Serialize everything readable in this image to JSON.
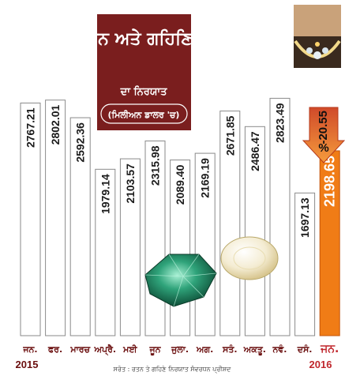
{
  "chart_data": {
    "type": "bar",
    "title": "ਰਤਨ ਅਤੇ ਗਹਿਣਿਆਂ",
    "subtitle": "ਦਾ ਨਿਰਯਾਤ",
    "unit": "(ਮਿਲੀਅਨ ਡਾਲਰ 'ਚ)",
    "categories": [
      "ਜਨ.",
      "ਫਰ.",
      "ਮਾਰਚ",
      "ਅਪ੍ਰੈ.",
      "ਮਈ",
      "ਜੂਨ",
      "ਜੁਲਾ.",
      "ਅਗ.",
      "ਸਤੰ.",
      "ਅਕਤੂ.",
      "ਨਵੰ.",
      "ਦਸੰ.",
      "ਜਨ."
    ],
    "values": [
      2767.21,
      2802.01,
      2592.36,
      1979.14,
      2103.57,
      2315.98,
      2089.4,
      2169.19,
      2671.85,
      2486.47,
      2823.49,
      1697.13,
      2198.65
    ],
    "value_labels": [
      "2767.21",
      "2802.01",
      "2592.36",
      "1979.14",
      "2103.57",
      "2315.98",
      "2089.40",
      "2169.19",
      "2671.85",
      "2486.47",
      "2823.49",
      "1697.13",
      "2198.65"
    ],
    "highlight_index": 12,
    "highlight_color": "#f07c16",
    "change_label": "-20.55",
    "change_unit": "%",
    "year_start": "2015",
    "year_end": "2016",
    "source": "ਸਰੋਤ : ਰਤਨ ਤੇ ਗਹਿਣੇ ਨਿਰਯਾਤ ਸੰਵਰਧਨ ਪ੍ਰੀਸ਼ਦ",
    "ylim": [
      0,
      3100
    ],
    "grid": false,
    "legend": "none",
    "colors": {
      "title_box": "#7a1e1e",
      "axis_labels": "#6b0f0f",
      "highlight_labels": "#c0272d",
      "bar_fill": "#ffffff"
    }
  }
}
